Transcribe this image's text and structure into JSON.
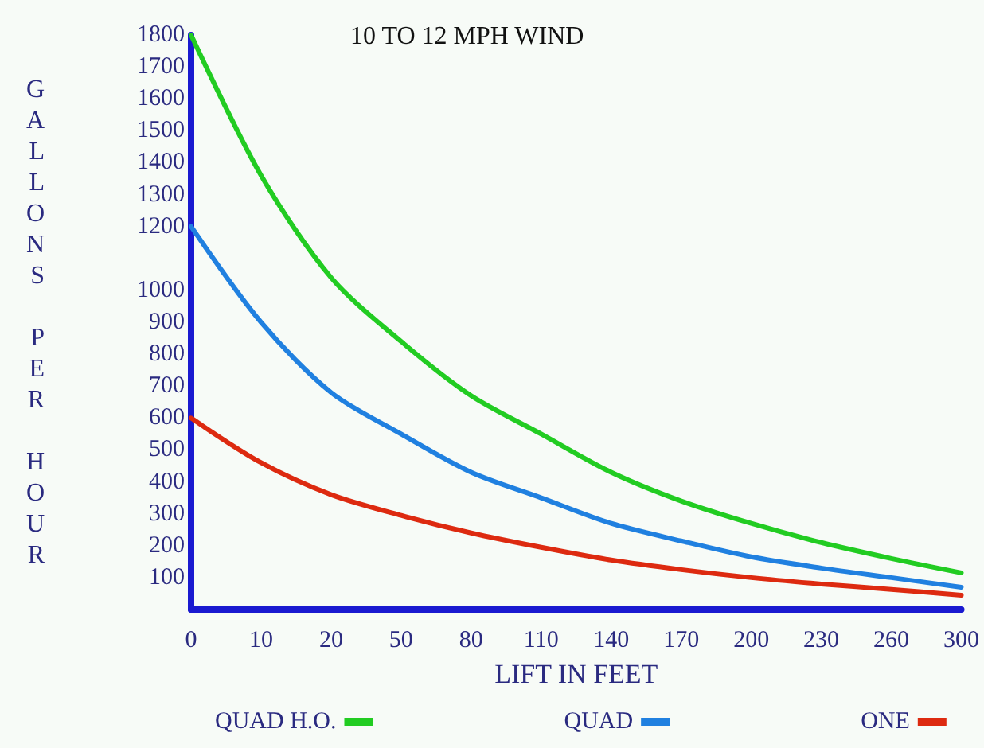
{
  "chart_data": {
    "type": "line",
    "title": "10 TO 12 MPH WIND",
    "xlabel": "LIFT IN FEET",
    "ylabel": "GALLONS PER HOUR",
    "categories": [
      "0",
      "10",
      "20",
      "50",
      "80",
      "110",
      "140",
      "170",
      "200",
      "230",
      "260",
      "300"
    ],
    "series": [
      {
        "name": "QUAD H.O.",
        "color": "#22cc22",
        "values": [
          1800,
          1360,
          1040,
          840,
          670,
          550,
          430,
          340,
          270,
          210,
          160,
          115
        ]
      },
      {
        "name": "QUAD",
        "color": "#2080e0",
        "values": [
          1200,
          900,
          680,
          550,
          430,
          350,
          270,
          215,
          165,
          130,
          100,
          70
        ]
      },
      {
        "name": "ONE",
        "color": "#dd2a10",
        "values": [
          600,
          460,
          360,
          295,
          240,
          195,
          155,
          125,
          100,
          80,
          63,
          45
        ]
      }
    ],
    "ylim": [
      0,
      1800
    ],
    "yticks": [
      100,
      200,
      300,
      400,
      500,
      600,
      700,
      800,
      900,
      1000,
      1200,
      1300,
      1400,
      1500,
      1600,
      1700,
      1800
    ],
    "grid": false,
    "legend": "bottom",
    "marker": "none",
    "line_style": "solid"
  }
}
